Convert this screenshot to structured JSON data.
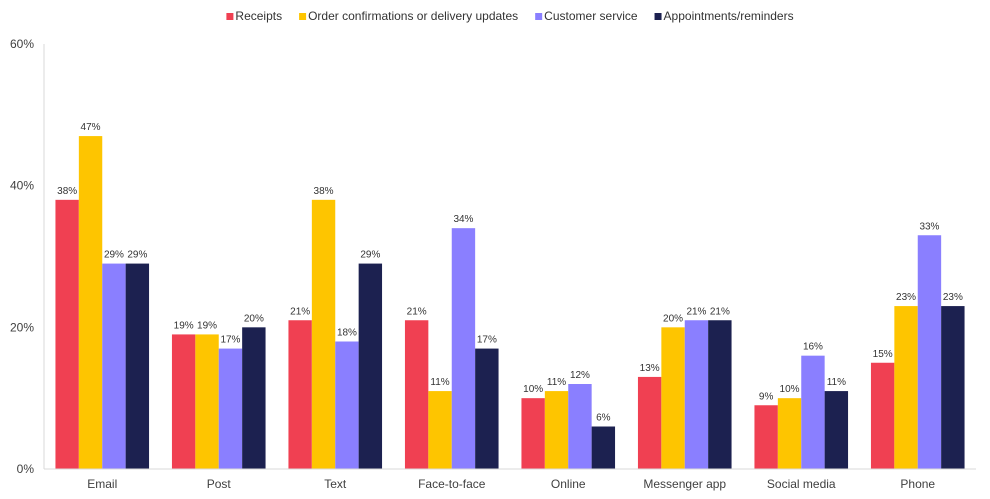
{
  "chart_data": {
    "type": "bar",
    "categories": [
      "Email",
      "Post",
      "Text",
      "Face-to-face",
      "Online",
      "Messenger app",
      "Social media",
      "Phone"
    ],
    "series": [
      {
        "name": "Receipts",
        "color": "#f04052",
        "values": [
          38,
          19,
          21,
          21,
          10,
          13,
          9,
          15
        ]
      },
      {
        "name": "Order confirmations or delivery updates",
        "color": "#fec500",
        "values": [
          47,
          19,
          38,
          11,
          11,
          20,
          10,
          23
        ]
      },
      {
        "name": "Customer service",
        "color": "#8a7fff",
        "values": [
          29,
          17,
          18,
          34,
          12,
          21,
          16,
          33
        ]
      },
      {
        "name": "Appointments/reminders",
        "color": "#1c2150",
        "values": [
          29,
          20,
          29,
          17,
          6,
          21,
          11,
          23
        ]
      }
    ],
    "data_labels": [
      [
        "38%",
        "19%",
        "21%",
        "21%",
        "10%",
        "13%",
        "9%",
        "15%"
      ],
      [
        "47%",
        "19%",
        "38%",
        "11%",
        "11%",
        "20%",
        "10%",
        "23%"
      ],
      [
        "29%",
        "17%",
        "18%",
        "34%",
        "12%",
        "21%",
        "16%",
        "33%"
      ],
      [
        "29%",
        "20%",
        "29%",
        "17%",
        "6%",
        "21%",
        "11%",
        "23%"
      ]
    ],
    "yticks": [
      0,
      20,
      40,
      60
    ],
    "ytick_labels": [
      "0%",
      "20%",
      "40%",
      "60%"
    ],
    "ylim": [
      0,
      60
    ],
    "legend_position": "top-center",
    "grid": false
  }
}
